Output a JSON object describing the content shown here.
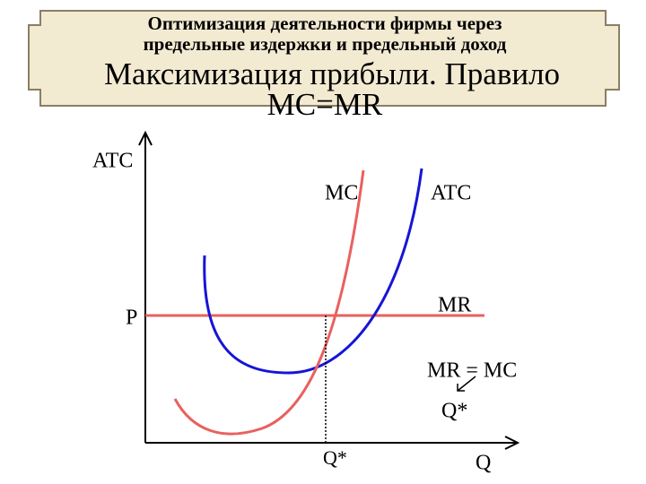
{
  "header": {
    "title_lines": [
      "Оптимизация деятельности фирмы через",
      "предельные издержки и предельный доход"
    ],
    "subtitle_lines": [
      "Максимизация прибыли. Правило",
      "MC=MR"
    ]
  },
  "diagram": {
    "y_axis_label": "ATC",
    "x_axis_label": "Q",
    "price_label": "P",
    "q_star_label": "Q*",
    "curve_labels": {
      "mc": "MC",
      "atc": "ATC",
      "mr": "MR"
    },
    "annotation": {
      "rule": "MR = MC",
      "result": "Q*"
    }
  }
}
